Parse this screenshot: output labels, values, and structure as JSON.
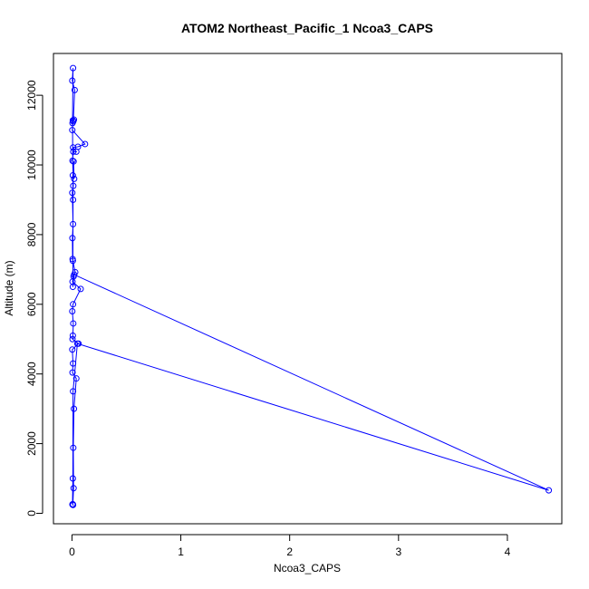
{
  "chart_data": {
    "type": "line",
    "title": "ATOM2 Northeast_Pacific_1 Ncoa3_CAPS",
    "xlabel": "Ncoa3_CAPS",
    "ylabel": "Altitude (m)",
    "xlim": [
      -0.17,
      4.5
    ],
    "ylim": [
      -300,
      13200
    ],
    "xticks": [
      0,
      1,
      2,
      3,
      4
    ],
    "yticks": [
      0,
      2000,
      4000,
      6000,
      8000,
      10000,
      12000
    ],
    "grid": false,
    "legend": "none",
    "color": "#0000ff",
    "series": [
      {
        "points": [
          [
            0.005,
            250
          ],
          [
            0.01,
            240
          ],
          [
            0.008,
            260
          ],
          [
            0.015,
            720
          ],
          [
            0.012,
            1880
          ],
          [
            0.018,
            3000
          ],
          [
            0.04,
            3870
          ],
          [
            0.005,
            4040
          ],
          [
            0.01,
            4300
          ],
          [
            0.003,
            4700
          ],
          [
            0.06,
            4870
          ],
          [
            0.005,
            5000
          ],
          [
            0.008,
            5100
          ],
          [
            0.012,
            5450
          ],
          [
            0.003,
            5800
          ],
          [
            0.01,
            6000
          ],
          [
            0.08,
            6440
          ],
          [
            0.005,
            6650
          ],
          [
            0.015,
            6800
          ],
          [
            0.03,
            6920
          ],
          [
            0.008,
            7250
          ],
          [
            0.006,
            7300
          ],
          [
            0.004,
            7900
          ],
          [
            0.01,
            8300
          ],
          [
            0.003,
            9200
          ],
          [
            0.012,
            9400
          ],
          [
            0.008,
            9700
          ],
          [
            0.02,
            9600
          ],
          [
            0.015,
            10100
          ],
          [
            0.005,
            10120
          ],
          [
            0.012,
            10380
          ],
          [
            0.04,
            10380
          ],
          [
            0.01,
            10500
          ],
          [
            0.055,
            10520
          ],
          [
            0.12,
            10600
          ],
          [
            0.003,
            11000
          ],
          [
            0.008,
            11280
          ],
          [
            0.018,
            11300
          ],
          [
            0.012,
            11250
          ],
          [
            0.025,
            12150
          ],
          [
            0.003,
            12420
          ],
          [
            0.01,
            12780
          ],
          [
            0.005,
            11200
          ],
          [
            0.01,
            9000
          ],
          [
            0.008,
            6500
          ],
          [
            0.02,
            6850
          ],
          [
            4.38,
            660
          ],
          [
            0.05,
            4870
          ],
          [
            0.01,
            3500
          ],
          [
            0.008,
            1000
          ],
          [
            0.005,
            260
          ]
        ]
      }
    ]
  }
}
